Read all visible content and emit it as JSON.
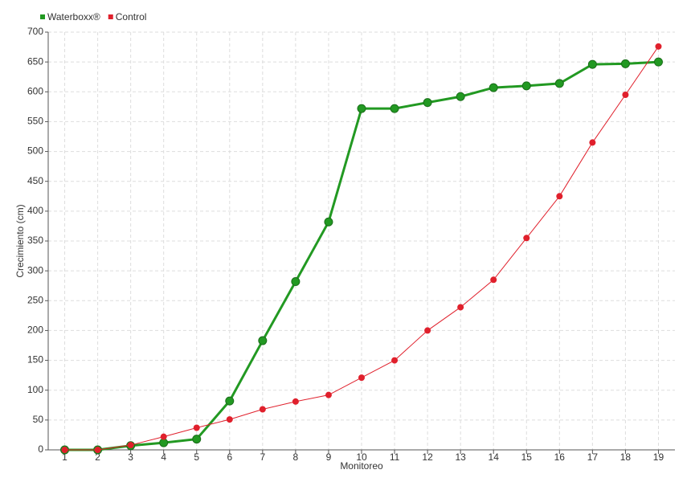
{
  "chart_data": {
    "type": "line",
    "x_label": "Monitoreo",
    "y_label": "Crecimiento (cm)",
    "x": [
      1,
      2,
      3,
      4,
      5,
      6,
      7,
      8,
      9,
      10,
      11,
      12,
      13,
      14,
      15,
      16,
      17,
      18,
      19
    ],
    "xlim": [
      0.5,
      19.5
    ],
    "xticks": [
      1,
      2,
      3,
      4,
      5,
      6,
      7,
      8,
      9,
      10,
      11,
      12,
      13,
      14,
      15,
      16,
      17,
      18,
      19
    ],
    "ylim": [
      0,
      700
    ],
    "yticks": [
      0,
      50,
      100,
      150,
      200,
      250,
      300,
      350,
      400,
      450,
      500,
      550,
      600,
      650,
      700
    ],
    "grid": true,
    "legend": "top-left",
    "series": [
      {
        "name": "Waterboxx®",
        "color": "#229922",
        "values": [
          0,
          0,
          7,
          12,
          18,
          82,
          183,
          282,
          382,
          572,
          572,
          582,
          592,
          607,
          610,
          614,
          646,
          647,
          650
        ]
      },
      {
        "name": "Control",
        "color": "#e0202c",
        "values": [
          0,
          0,
          8,
          22,
          37,
          51,
          68,
          81,
          92,
          121,
          150,
          200,
          239,
          285,
          355,
          425,
          515,
          595,
          676
        ]
      }
    ]
  }
}
